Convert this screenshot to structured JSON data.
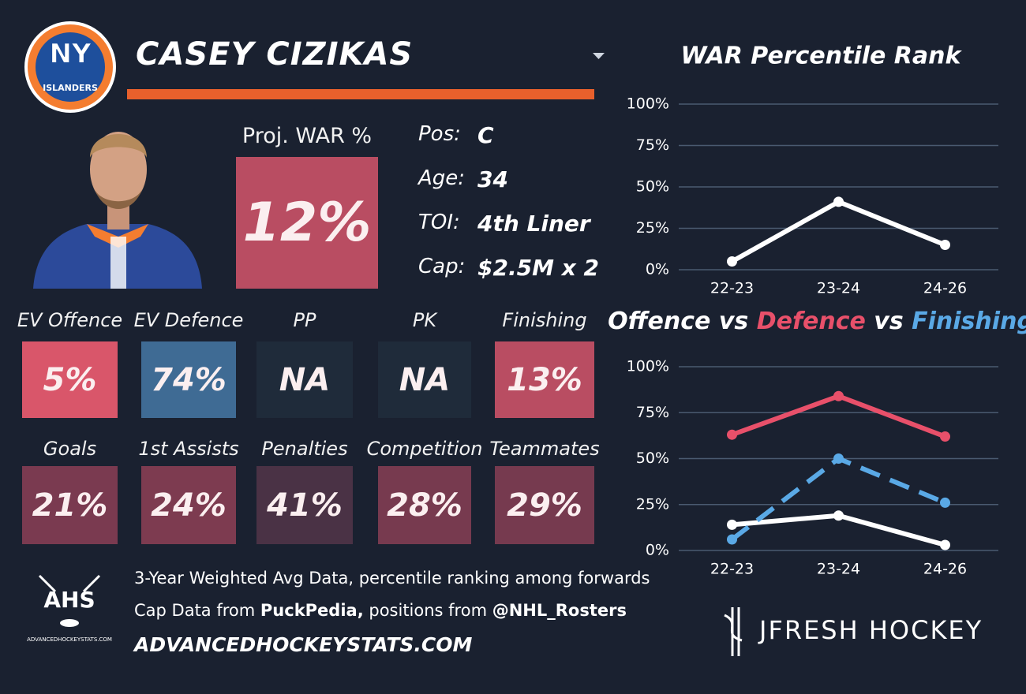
{
  "header": {
    "logo_text": "NY",
    "logo_subtext": "ISLANDERS",
    "player_name": "CASEY CIZIKAS"
  },
  "projection": {
    "label": "Proj. WAR %",
    "value": "12%",
    "color": "#b94d62"
  },
  "info": [
    {
      "label": "Pos:",
      "value": "C"
    },
    {
      "label": "Age:",
      "value": "34"
    },
    {
      "label": "TOI:",
      "value": "4th Liner"
    },
    {
      "label": "Cap:",
      "value": "$2.5M x 2"
    }
  ],
  "tiles": [
    [
      {
        "label": "EV Offence",
        "value": "5%",
        "color": "#d9566a"
      },
      {
        "label": "EV Defence",
        "value": "74%",
        "color": "#3f6b94"
      },
      {
        "label": "PP",
        "value": "NA",
        "color": "#1f2b3a"
      },
      {
        "label": "PK",
        "value": "NA",
        "color": "#1f2b3a"
      },
      {
        "label": "Finishing",
        "value": "13%",
        "color": "#b94d62"
      }
    ],
    [
      {
        "label": "Goals",
        "value": "21%",
        "color": "#7a3a50"
      },
      {
        "label": "1st Assists",
        "value": "24%",
        "color": "#7d3b50"
      },
      {
        "label": "Penalties",
        "value": "41%",
        "color": "#4a3245"
      },
      {
        "label": "Competition",
        "value": "28%",
        "color": "#773a4f"
      },
      {
        "label": "Teammates",
        "value": "29%",
        "color": "#763a4f"
      }
    ]
  ],
  "footer": {
    "note": "3-Year Weighted Avg Data, percentile ranking among forwards",
    "sources": [
      "Cap Data from ",
      "PuckPedia,",
      " positions from ",
      "@NHL_Rosters"
    ],
    "website": "ADVANCEDHOCKEYSTATS.COM",
    "ahs_logo": "AHS",
    "ahs_logo_url": "ADVANCEDHOCKEYSTATS.COM",
    "brand": "JFRESH HOCKEY"
  },
  "chart_data": [
    {
      "type": "line",
      "title": "WAR Percentile Rank",
      "categories": [
        "22-23",
        "23-24",
        "24-26"
      ],
      "series": [
        {
          "name": null,
          "color": "#ffffff",
          "values": [
            5,
            41,
            15
          ]
        }
      ],
      "ylim": [
        0,
        100
      ],
      "yticks": [
        {
          "value": 0,
          "label": "0%"
        },
        {
          "value": 25,
          "label": "25%"
        },
        {
          "value": 50,
          "label": "50%"
        },
        {
          "value": 75,
          "label": "75%"
        },
        {
          "value": 100,
          "label": "100%"
        }
      ],
      "grid": true
    },
    {
      "type": "line",
      "title_separator": "vs",
      "categories": [
        "22-23",
        "23-24",
        "24-26"
      ],
      "series": [
        {
          "name": "Offence",
          "color": "#ffffff",
          "values": [
            14,
            19,
            3
          ]
        },
        {
          "name": "Defence",
          "color": "#e8506a",
          "values": [
            63,
            84,
            62
          ]
        },
        {
          "name": "Finishing",
          "color": "#5aa9e6",
          "values": [
            6,
            50,
            26
          ],
          "dashed": true
        }
      ],
      "ylim": [
        0,
        100
      ],
      "yticks": [
        {
          "value": 0,
          "label": "0%"
        },
        {
          "value": 25,
          "label": "25%"
        },
        {
          "value": 50,
          "label": "50%"
        },
        {
          "value": 75,
          "label": "75%"
        },
        {
          "value": 100,
          "label": "100%"
        }
      ],
      "grid": true
    }
  ]
}
